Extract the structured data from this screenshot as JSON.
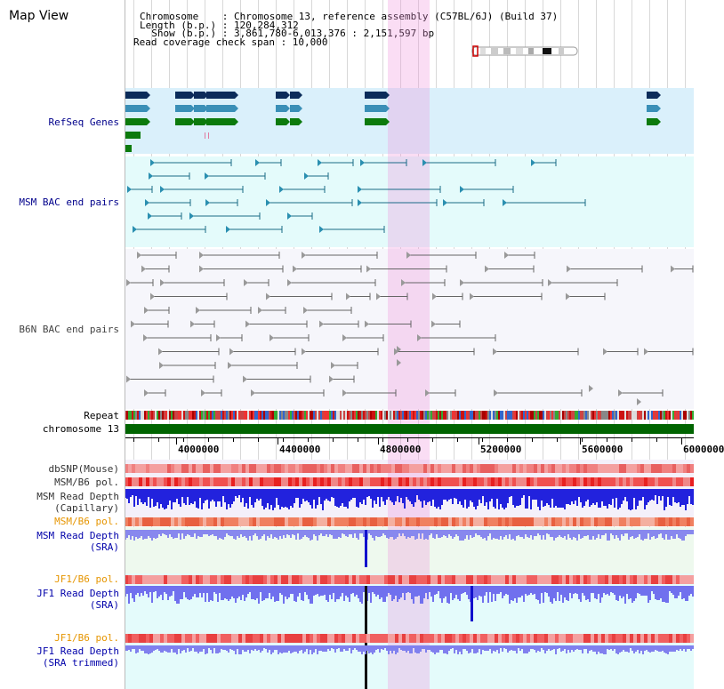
{
  "header": {
    "title": "Map View",
    "info_lines": [
      "Chromosome    : Chromosome 13, reference assembly (C57BL/6J) (Build 37)",
      "Length (b.p.) : 120,284,312",
      "  Show (b.p.) : 3,861,780-6,013,376 : 2,151,597 bp",
      "Read coverage check span : 10,000"
    ]
  },
  "tracks": {
    "refseq": "RefSeq Genes",
    "msm_bac": "MSM BAC end pairs",
    "b6n_bac": "B6N BAC end pairs",
    "repeat": "Repeat",
    "chromosome": "chromosome 13"
  },
  "axis": {
    "ticks": [
      "4000000",
      "4400000",
      "4800000",
      "5200000",
      "5600000",
      "6000000"
    ]
  },
  "lower_tracks": [
    {
      "label": "dbSNP(Mouse)",
      "color": "#333333"
    },
    {
      "label": "MSM/B6 pol.",
      "color": "#333333"
    },
    {
      "label": "MSM Read Depth\n(Capillary)",
      "color": "#333333"
    },
    {
      "label": "MSM/B6 pol.",
      "color": "#e69500"
    },
    {
      "label": "MSM Read Depth\n(SRA)",
      "color": "#0000aa"
    },
    {
      "label": "JF1/B6 pol.",
      "color": "#e69500"
    },
    {
      "label": "JF1 Read Depth\n(SRA)",
      "color": "#0000aa"
    },
    {
      "label": "JF1/B6 pol.",
      "color": "#e69500"
    },
    {
      "label": "JF1 Read Depth\n(SRA trimmed)",
      "color": "#0000aa"
    }
  ],
  "colors": {
    "refseq_bg": "#daf0fb",
    "msm_bac_bg": "#e4fbfb",
    "b6n_bac_bg": "#f6f6fb",
    "chromosome": "#006400",
    "highlight": "#f6c6ee"
  }
}
